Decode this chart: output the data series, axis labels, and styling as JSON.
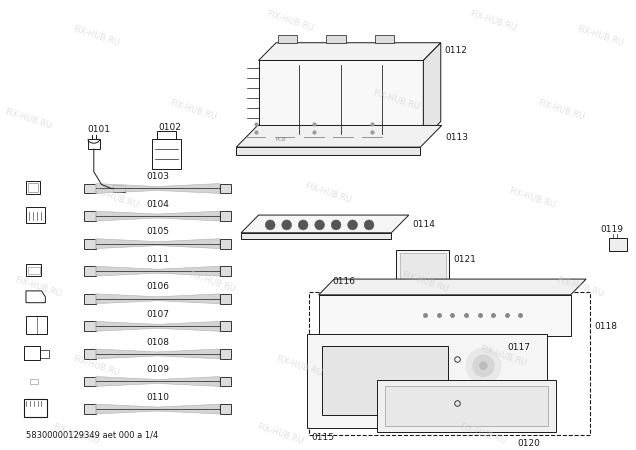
{
  "footer_text": "58300000129349 aet 000 a 1/4",
  "bg_color": "#ffffff",
  "line_color": "#1a1a1a",
  "watermark_color": "#c8c8c8",
  "watermark_text": "FIX-HUB.RU"
}
